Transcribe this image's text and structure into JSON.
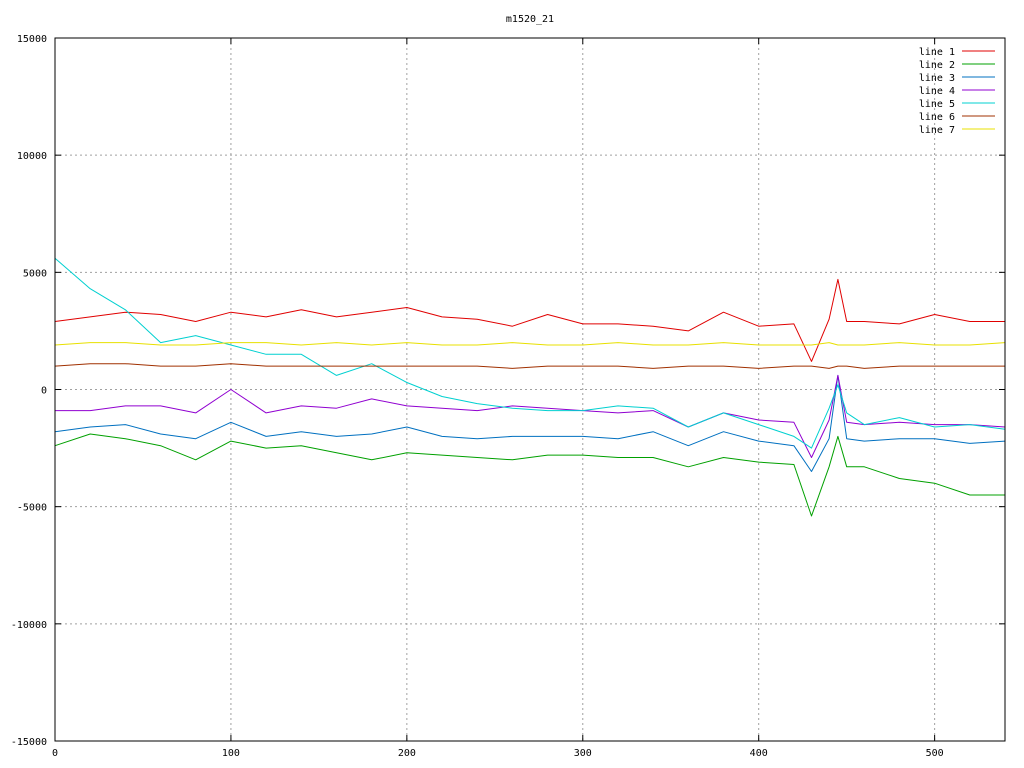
{
  "chart_data": {
    "type": "line",
    "title": "m1520_21",
    "xlabel": "",
    "ylabel": "",
    "xlim": [
      0,
      540
    ],
    "ylim": [
      -15000,
      15000
    ],
    "x_ticks": [
      0,
      100,
      200,
      300,
      400,
      500
    ],
    "y_ticks": [
      -15000,
      -10000,
      -5000,
      0,
      5000,
      10000,
      15000
    ],
    "grid": true,
    "legend_position": "top-right",
    "x": [
      0,
      20,
      40,
      60,
      80,
      100,
      120,
      140,
      160,
      180,
      200,
      220,
      240,
      260,
      280,
      300,
      320,
      340,
      360,
      380,
      400,
      420,
      430,
      440,
      445,
      450,
      460,
      480,
      500,
      520,
      540
    ],
    "series": [
      {
        "name": "line 1",
        "color": "#e00000",
        "values": [
          2900,
          3100,
          3300,
          3200,
          2900,
          3300,
          3100,
          3400,
          3100,
          3300,
          3500,
          3100,
          3000,
          2700,
          3200,
          2800,
          2800,
          2700,
          2500,
          3300,
          2700,
          2800,
          1200,
          3000,
          4700,
          2900,
          2900,
          2800,
          3200,
          2900,
          2900
        ]
      },
      {
        "name": "line 2",
        "color": "#00a000",
        "values": [
          -2400,
          -1900,
          -2100,
          -2400,
          -3000,
          -2200,
          -2500,
          -2400,
          -2700,
          -3000,
          -2700,
          -2800,
          -2900,
          -3000,
          -2800,
          -2800,
          -2900,
          -2900,
          -3300,
          -2900,
          -3100,
          -3200,
          -5400,
          -3300,
          -2000,
          -3300,
          -3300,
          -3800,
          -4000,
          -4500,
          -4500
        ]
      },
      {
        "name": "line 3",
        "color": "#0070c0",
        "values": [
          -1800,
          -1600,
          -1500,
          -1900,
          -2100,
          -1400,
          -2000,
          -1800,
          -2000,
          -1900,
          -1600,
          -2000,
          -2100,
          -2000,
          -2000,
          -2000,
          -2100,
          -1800,
          -2400,
          -1800,
          -2200,
          -2400,
          -3500,
          -2100,
          600,
          -2100,
          -2200,
          -2100,
          -2100,
          -2300,
          -2200
        ]
      },
      {
        "name": "line 4",
        "color": "#9000d0",
        "values": [
          -900,
          -900,
          -700,
          -700,
          -1000,
          0,
          -1000,
          -700,
          -800,
          -400,
          -700,
          -800,
          -900,
          -700,
          -800,
          -900,
          -1000,
          -900,
          -1600,
          -1000,
          -1300,
          -1400,
          -2900,
          -1300,
          600,
          -1400,
          -1500,
          -1400,
          -1500,
          -1500,
          -1600
        ]
      },
      {
        "name": "line 5",
        "color": "#00d0d0",
        "values": [
          5600,
          4300,
          3400,
          2000,
          2300,
          1900,
          1500,
          1500,
          600,
          1100,
          300,
          -300,
          -600,
          -800,
          -900,
          -900,
          -700,
          -800,
          -1600,
          -1000,
          -1500,
          -2000,
          -2500,
          -800,
          200,
          -1000,
          -1500,
          -1200,
          -1600,
          -1500,
          -1700
        ]
      },
      {
        "name": "line 6",
        "color": "#a03000",
        "values": [
          1000,
          1100,
          1100,
          1000,
          1000,
          1100,
          1000,
          1000,
          1000,
          1000,
          1000,
          1000,
          1000,
          900,
          1000,
          1000,
          1000,
          900,
          1000,
          1000,
          900,
          1000,
          1000,
          900,
          1000,
          1000,
          900,
          1000,
          1000,
          1000,
          1000
        ]
      },
      {
        "name": "line 7",
        "color": "#e8e000",
        "values": [
          1900,
          2000,
          2000,
          1900,
          1900,
          2000,
          2000,
          1900,
          2000,
          1900,
          2000,
          1900,
          1900,
          2000,
          1900,
          1900,
          2000,
          1900,
          1900,
          2000,
          1900,
          1900,
          1900,
          2000,
          1900,
          1900,
          1900,
          2000,
          1900,
          1900,
          2000
        ]
      }
    ]
  }
}
